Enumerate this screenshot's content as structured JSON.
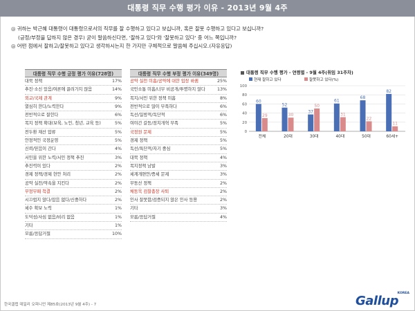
{
  "header": {
    "title": "대통령 직무 수행 평가 이유 - 2013년 9월 4주"
  },
  "questions": {
    "q1_line1": "◎ 귀하는 박근혜 대통령이 대통령으로서의 직무를 잘 수행하고 있다고 보십니까, 혹은 잘못 수행하고 있다고 보십니까?",
    "q1_line2": "(긍정/부정을 답하지 않은 경우) 굳이 말씀하신다면, '잘하고 있다'와 '잘못하고 있다' 중 어느 쪽입니까?",
    "q2_line1": "◎ 어떤 점에서 잘하고/잘못하고 있다고 생각하시는지 한 가지만 구체적으로 말씀해 주십시오.(자유응답)"
  },
  "positive_table": {
    "title": "대통령 직무 수행 긍정 평가 이유(728명)",
    "rows": [
      {
        "label": "대북 정책",
        "pct": "17%",
        "red": false
      },
      {
        "label": "추진·소신 있음/여론에 끌려가지 않음",
        "pct": "14%",
        "red": false
      },
      {
        "label": "외교/국제 관계",
        "pct": "9%",
        "red": true
      },
      {
        "label": "열심히 한다/노력한다",
        "pct": "9%",
        "red": false
      },
      {
        "label": "전반적으로 잘한다",
        "pct": "6%",
        "red": false
      },
      {
        "label": "복지 정책 확대(보육, 노인, 청년, 교육 등)",
        "pct": "5%",
        "red": false
      },
      {
        "label": "전두환 재산 압류",
        "pct": "5%",
        "red": false
      },
      {
        "label": "안정적인 국정운영",
        "pct": "5%",
        "red": false
      },
      {
        "label": "신뢰/믿음이 간다",
        "pct": "4%",
        "red": false
      },
      {
        "label": "서민을 위한 노력/서민 정책 추진",
        "pct": "3%",
        "red": false
      },
      {
        "label": "추진력이 있다",
        "pct": "2%",
        "red": false
      },
      {
        "label": "경제 정책/경제 현안 처리",
        "pct": "2%",
        "red": false
      },
      {
        "label": "공약 실천/약속을 지킨다",
        "pct": "2%",
        "red": false
      },
      {
        "label": "부정부패 척결",
        "pct": "2%",
        "red": true
      },
      {
        "label": "시끄럽지 않다/잡음 없다/신중하다",
        "pct": "2%",
        "red": false
      },
      {
        "label": "세수 확보 노력",
        "pct": "1%",
        "red": false
      },
      {
        "label": "도덕성/사심 없음/비리 없음",
        "pct": "1%",
        "red": false
      },
      {
        "label": "기타",
        "pct": "1%",
        "red": false
      },
      {
        "label": "모름/응답거절",
        "pct": "10%",
        "red": false
      }
    ]
  },
  "negative_table": {
    "title": "대통령 직무 수행 부정 평가 이유(349명)",
    "rows": [
      {
        "label": "공약 실천 미흡/공약에 대한 입장 바뀜",
        "pct": "25%",
        "red": true
      },
      {
        "label": "국민소통 미흡/너무 비공개/투명하지 않다",
        "pct": "13%",
        "red": false
      },
      {
        "label": "복지/서민 위한 정책 미흡",
        "pct": "8%",
        "red": false
      },
      {
        "label": "전반적으로 많이 부족하다",
        "pct": "6%",
        "red": false
      },
      {
        "label": "독선/일방적/독단적",
        "pct": "6%",
        "red": false
      },
      {
        "label": "여야간 갈등/정치개혁 부족",
        "pct": "5%",
        "red": false
      },
      {
        "label": "국정원 문제",
        "pct": "5%",
        "red": true
      },
      {
        "label": "경제 정책",
        "pct": "5%",
        "red": false
      },
      {
        "label": "독선/특단적/자기 중심",
        "pct": "5%",
        "red": false
      },
      {
        "label": "대북 정책",
        "pct": "4%",
        "red": false
      },
      {
        "label": "복지정책 남발",
        "pct": "3%",
        "red": false
      },
      {
        "label": "세계개편안/증세 문제",
        "pct": "3%",
        "red": false
      },
      {
        "label": "부동산 정책",
        "pct": "2%",
        "red": false
      },
      {
        "label": "채동욱 검찰총장 사퇴",
        "pct": "2%",
        "red": true
      },
      {
        "label": "인사 잘못함/검증되지 않은 인사 등용",
        "pct": "2%",
        "red": false
      },
      {
        "label": "기타",
        "pct": "3%",
        "red": false
      },
      {
        "label": "모름/응답거절",
        "pct": "4%",
        "red": false
      }
    ]
  },
  "chart_title": "대통령 직무 수행 평가 - 연령별 - 9월 4주(취임 31주차)",
  "chart_data": {
    "type": "bar",
    "categories": [
      "전체",
      "20대",
      "30대",
      "40대",
      "50대",
      "60세+"
    ],
    "series": [
      {
        "name": "현재 잘하고 있다",
        "values": [
          60,
          52,
          37,
          61,
          68,
          82
        ],
        "color": "#4a6fb5"
      },
      {
        "name": "잘못하고 있다(%)",
        "values": [
          29,
          30,
          50,
          31,
          22,
          11
        ],
        "color": "#d98a8a"
      }
    ],
    "ylim": [
      0,
      100
    ],
    "yticks": [
      0,
      20,
      40,
      60,
      80,
      100
    ],
    "legend_position": "top",
    "grid": true
  },
  "footer": {
    "source": "한국갤럽 데일리 오피니언 제85호(2013년 9월 4주) - 7"
  },
  "logo": {
    "main": "Gallup",
    "sub": "KOREA"
  }
}
